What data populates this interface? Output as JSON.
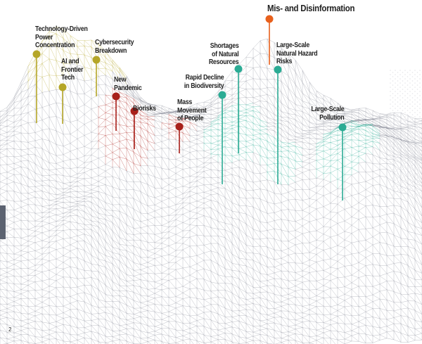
{
  "page_number": "2",
  "colors": {
    "technological": "#b5a628",
    "societal": "#a8201a",
    "environmental": "#2bab94",
    "information": "#e8601c",
    "mesh": "#8a8d99"
  },
  "risks": [
    {
      "label": "Technology-Driven\nPower\nConcentration",
      "group": "technological"
    },
    {
      "label": "AI and\nFrontier\nTech",
      "group": "technological"
    },
    {
      "label": "Cybersecurity\nBreakdown",
      "group": "technological"
    },
    {
      "label": "New\nPandemic",
      "group": "societal"
    },
    {
      "label": "Biorisks",
      "group": "societal"
    },
    {
      "label": "Mass\nMovement\nof People",
      "group": "societal"
    },
    {
      "label": "Rapid Decline\nin Biodiversity",
      "group": "environmental"
    },
    {
      "label": "Shortages\nof Natural\nResources",
      "group": "environmental"
    },
    {
      "label": "Mis- and Disinformation",
      "group": "information"
    },
    {
      "label": "Large-Scale\nNatural Hazard\nRisks",
      "group": "environmental"
    },
    {
      "label": "Large-Scale\nPollution",
      "group": "environmental"
    }
  ]
}
